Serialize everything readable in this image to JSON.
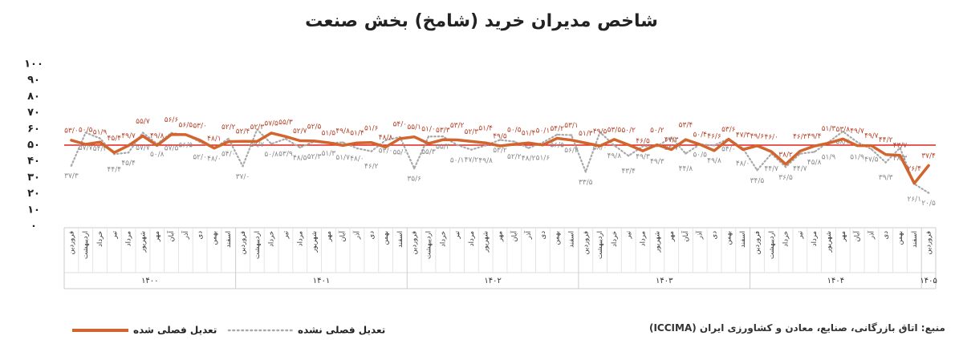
{
  "chart_data": {
    "type": "line",
    "title": "شاخص مدیران خرید (شامخ) بخش صنعت",
    "source": "منبع: اتاق بازرگانی، صنایع، معادن و کشاورزی ایران (ICCIMA)",
    "categories": [
      "فروردین",
      "اردیبهشت",
      "خرداد",
      "تیر",
      "مرداد",
      "شهریور",
      "مهر",
      "آبان",
      "آذر",
      "دی",
      "بهمن",
      "اسفند",
      "فروردین",
      "اردیبهشت",
      "خرداد",
      "تیر",
      "مرداد",
      "شهریور",
      "مهر",
      "آبان",
      "آذر",
      "دی",
      "بهمن",
      "اسفند",
      "فروردین",
      "اردیبهشت",
      "خرداد",
      "تیر",
      "مرداد",
      "شهریور",
      "مهر",
      "آبان",
      "آذر",
      "دی",
      "بهمن",
      "اسفند",
      "فروردین",
      "اردیبهشت",
      "خرداد",
      "تیر",
      "مرداد",
      "شهریور",
      "مهر",
      "آبان",
      "آذر",
      "دی",
      "بهمن",
      "اسفند",
      "فروردین",
      "اردیبهشت",
      "خرداد",
      "تیر",
      "مرداد",
      "شهریور",
      "مهر",
      "آبان",
      "آذر",
      "دی",
      "بهمن",
      "اسفند",
      "فروردین"
    ],
    "x_groups": [
      "۱۴۰۰",
      "۱۴۰۱",
      "۱۴۰۲",
      "۱۴۰۳",
      "۱۴۰۴",
      "۱۴۰۵"
    ],
    "series": [
      {
        "name": "تعدیل فصلی شده",
        "color": "#d2652d",
        "label_color": "#b5452b",
        "style": "solid",
        "values": [
          53.0,
          50.5,
          51.9,
          45.4,
          49.7,
          55.7,
          49.8,
          56.6,
          56.5,
          53.0,
          48.1,
          52.2,
          52.4,
          52.3,
          57.5,
          55.3,
          52.7,
          52.5,
          51.5,
          49.8,
          51.4,
          51.6,
          48.8,
          54.0,
          55.1,
          51.0,
          53.3,
          53.2,
          52.3,
          51.4,
          49.5,
          50.5,
          51.4,
          50.1,
          54.2,
          53.1,
          51.3,
          49.5,
          53.5,
          50.2,
          46.5,
          50.2,
          47.3,
          53.4,
          50.4,
          46.6,
          53.6,
          47.3,
          49.6,
          46.0,
          38.2,
          46.3,
          49.4,
          51.3,
          53.8,
          49.7,
          49.7,
          44.2,
          43.7,
          26.4,
          37.4
        ],
        "value_labels": [
          "۵۳/۰",
          "۵۰/۵",
          "۵۱/۹",
          "۴۵/۴",
          "۴۹/۷",
          "۵۵/۷",
          "۴۹/۸",
          "۵۶/۶",
          "۵۶/۵",
          "۵۳/۰",
          "۴۸/۱",
          "۵۲/۲",
          "۵۲/۴",
          "۵۲/۳",
          "۵۷/۵",
          "۵۵/۳",
          "۵۲/۷",
          "۵۲/۵",
          "۵۱/۵",
          "۴۹/۸",
          "۵۱/۴",
          "۵۱/۶",
          "۴۸/۸",
          "۵۴/۰",
          "۵۵/۱",
          "۵۱/۰",
          "۵۳/۳",
          "۵۳/۲",
          "۵۲/۳",
          "۵۱/۴",
          "۴۹/۵",
          "۵۰/۵",
          "۵۱/۴",
          "۵۰/۱",
          "۵۴/۲",
          "۵۳/۱",
          "۵۱/۳",
          "۴۹/۵",
          "۵۳/۵",
          "۵۰/۲",
          "۴۶/۵",
          "۵۰/۲",
          "۴۷/۳",
          "۵۳/۴",
          "۵۰/۴",
          "۴۶/۶",
          "۵۳/۶",
          "۴۷/۳",
          "۴۹/۶",
          "۴۶/۰",
          "۳۸/۲",
          "۴۶/۳",
          "۴۹/۴",
          "۵۱/۳",
          "۵۳/۸",
          "۴۹/۷",
          "۴۹/۷",
          "۴۴/۲",
          "۴۳/۷",
          "۲۶/۴",
          "۳۷/۴"
        ]
      },
      {
        "name": "تعدیل فصلی نشده",
        "color": "#a9a9a9",
        "label_color": "#8a8a8a",
        "style": "dotted",
        "values": [
          37.3,
          57.7,
          54.2,
          44.4,
          45.4,
          57.7,
          50.8,
          57.5,
          56.5,
          52.0,
          48.0,
          54.0,
          37.0,
          59.7,
          50.8,
          53.9,
          48.5,
          52.3,
          51.3,
          51.7,
          48.0,
          46.2,
          53.0,
          55.0,
          35.6,
          55.3,
          55.4,
          50.1,
          47.2,
          49.8,
          53.2,
          52.2,
          48.2,
          51.6,
          56.5,
          56.2,
          33.5,
          58.0,
          49.8,
          43.4,
          49.3,
          49.3,
          54.7,
          44.8,
          50.5,
          49.8,
          54.0,
          48.0,
          34.5,
          44.7,
          36.5,
          44.7,
          45.8,
          51.9,
          58.4,
          51.9,
          47.5,
          39.3,
          48.3,
          26.1,
          20.5
        ],
        "value_labels": [
          "۳۷/۳",
          "۵۷/۷",
          "۵۴/۲",
          "۴۴/۴",
          "۴۵/۴",
          "۵۷/۷",
          "۵۰/۸",
          "۵۷/۵",
          "۵۶/۵",
          "۵۲/۰",
          "۴۸/۰",
          "۵۴/۰",
          "۳۷/۰",
          "۵۹/۷",
          "۵۰/۸",
          "۵۳/۹",
          "۴۸/۵",
          "۵۲/۳",
          "۵۱/۳",
          "۵۱/۷",
          "۴۸/۰",
          "۴۶/۲",
          "۵۳/۰",
          "۵۵/۰",
          "۳۵/۶",
          "۵۵/۳",
          "۵۵/۴",
          "۵۰/۱",
          "۴۷/۲",
          "۴۹/۸",
          "۵۳/۲",
          "۵۲/۲",
          "۴۸/۲",
          "۵۱/۶",
          "۵۶/۵",
          "۵۶/۲",
          "۳۳/۵",
          "۵۸/۰",
          "۴۹/۸",
          "۴۳/۴",
          "۴۹/۳",
          "۴۹/۳",
          "۵۴/۷",
          "۴۴/۸",
          "۵۰/۵",
          "۴۹/۸",
          "۵۴/۰",
          "۴۸/۰",
          "۳۴/۵",
          "۴۴/۷",
          "۳۶/۵",
          "۴۴/۷",
          "۴۵/۸",
          "۵۱/۹",
          "۵۸/۴",
          "۵۱/۹",
          "۴۷/۵",
          "۳۹/۳",
          "۴۸/۳",
          "۲۶/۱",
          "۲۰/۵"
        ]
      }
    ],
    "ylim": [
      0,
      100
    ],
    "yticks": [
      {
        "value": 0,
        "label": "۰"
      },
      {
        "value": 10,
        "label": "۱۰"
      },
      {
        "value": 20,
        "label": "۲۰"
      },
      {
        "value": 30,
        "label": "۳۰"
      },
      {
        "value": 40,
        "label": "۴۰"
      },
      {
        "value": 50,
        "label": "۵۰"
      },
      {
        "value": 60,
        "label": "۶۰"
      },
      {
        "value": 70,
        "label": "۷۰"
      },
      {
        "value": 80,
        "label": "۸۰"
      },
      {
        "value": 90,
        "label": "۹۰"
      },
      {
        "value": 100,
        "label": "۱۰۰"
      }
    ],
    "reference_line": 50,
    "reference_color": "#e0231e"
  }
}
